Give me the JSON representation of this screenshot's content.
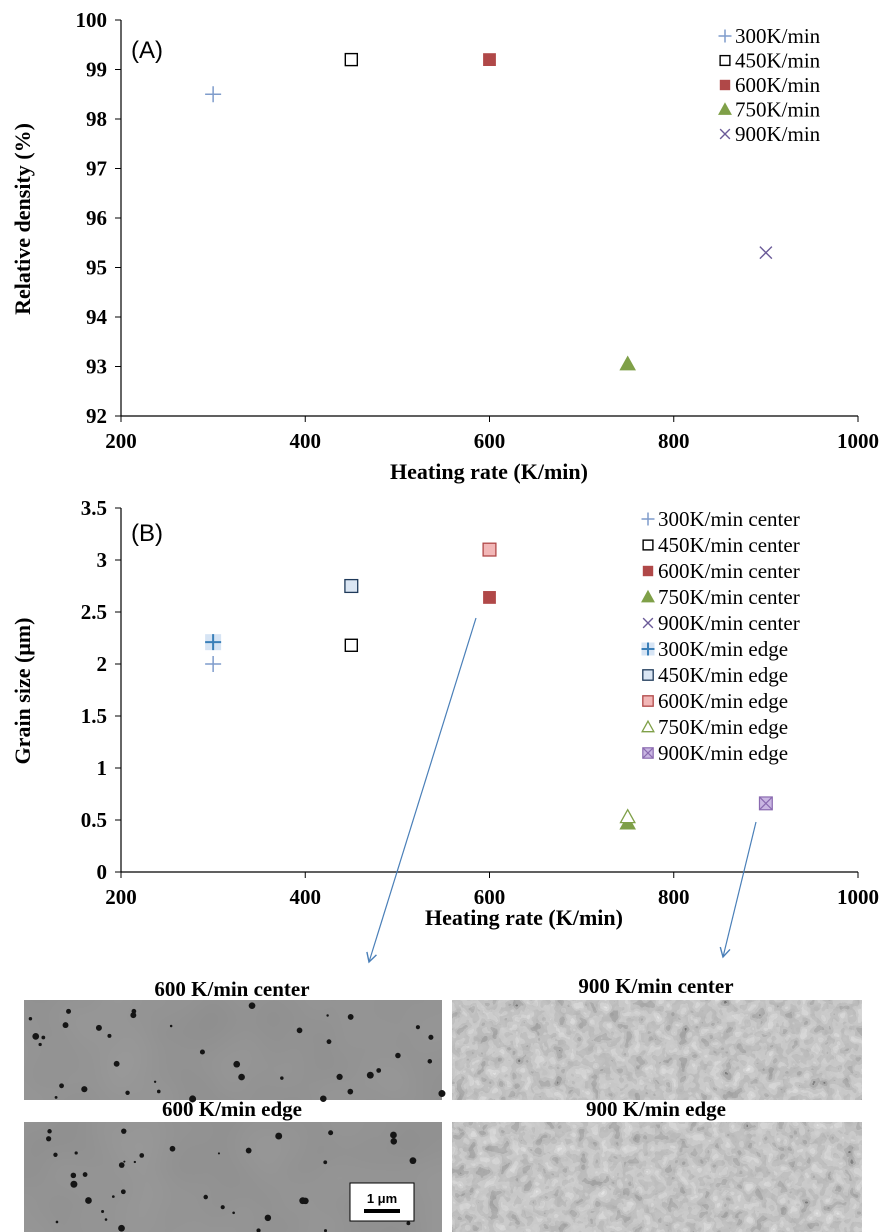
{
  "chart_data": [
    {
      "type": "scatter",
      "panel_label": "(A)",
      "title": "",
      "xlabel": "Heating rate (K/min)",
      "ylabel": "Relative density (%)",
      "xlim": [
        200,
        1000
      ],
      "ylim": [
        92,
        100
      ],
      "xticks": [
        200,
        400,
        600,
        800,
        1000
      ],
      "yticks": [
        92,
        93,
        94,
        95,
        96,
        97,
        98,
        99,
        100
      ],
      "grid": false,
      "legend_position": "top-right",
      "series": [
        {
          "name": "300K/min",
          "marker": "plus",
          "color": "#7f9ccb",
          "points": [
            {
              "x": 300,
              "y": 98.5
            }
          ]
        },
        {
          "name": "450K/min",
          "marker": "square-open",
          "color": "#000000",
          "points": [
            {
              "x": 450,
              "y": 99.2
            }
          ]
        },
        {
          "name": "600K/min",
          "marker": "square-filled",
          "color": "#b04848",
          "points": [
            {
              "x": 600,
              "y": 99.2
            }
          ]
        },
        {
          "name": "750K/min",
          "marker": "triangle-filled",
          "color": "#7fa048",
          "points": [
            {
              "x": 750,
              "y": 93.05
            }
          ]
        },
        {
          "name": "900K/min",
          "marker": "cross",
          "color": "#6a5a98",
          "points": [
            {
              "x": 900,
              "y": 95.3
            }
          ]
        }
      ]
    },
    {
      "type": "scatter",
      "panel_label": "(B)",
      "title": "",
      "xlabel": "Heating rate (K/min)",
      "ylabel": "Grain size (μm)",
      "xlim": [
        200,
        1000
      ],
      "ylim": [
        0,
        3.5
      ],
      "xticks": [
        200,
        400,
        600,
        800,
        1000
      ],
      "yticks": [
        0,
        0.5,
        1,
        1.5,
        2,
        2.5,
        3,
        3.5
      ],
      "grid": false,
      "legend_position": "top-right",
      "series": [
        {
          "name": "300K/min center",
          "marker": "plus",
          "color": "#7f9ccb",
          "points": [
            {
              "x": 300,
              "y": 2.0
            }
          ]
        },
        {
          "name": "450K/min center",
          "marker": "square-open",
          "color": "#000000",
          "points": [
            {
              "x": 450,
              "y": 2.18
            }
          ]
        },
        {
          "name": "600K/min center",
          "marker": "square-filled",
          "color": "#b04848",
          "points": [
            {
              "x": 600,
              "y": 2.64
            }
          ]
        },
        {
          "name": "750K/min center",
          "marker": "triangle-filled",
          "color": "#7fa048",
          "points": [
            {
              "x": 750,
              "y": 0.47
            }
          ]
        },
        {
          "name": "900K/min center",
          "marker": "cross",
          "color": "#6a5a98",
          "points": [
            {
              "x": 900,
              "y": 0.66
            }
          ]
        },
        {
          "name": "300K/min edge",
          "marker": "plus-boxed",
          "color": "#3a7fb8",
          "fill": "#d6e4f4",
          "points": [
            {
              "x": 300,
              "y": 2.21
            }
          ]
        },
        {
          "name": "450K/min edge",
          "marker": "square-light",
          "color": "#1f3a5a",
          "fill": "#dbe6f3",
          "points": [
            {
              "x": 450,
              "y": 2.75
            }
          ]
        },
        {
          "name": "600K/min edge",
          "marker": "square-light",
          "color": "#b04848",
          "fill": "#f2b7b7",
          "points": [
            {
              "x": 600,
              "y": 3.1
            }
          ]
        },
        {
          "name": "750K/min edge",
          "marker": "triangle-open",
          "color": "#7fa048",
          "fill": "#ffffff",
          "points": [
            {
              "x": 750,
              "y": 0.53
            }
          ]
        },
        {
          "name": "900K/min edge",
          "marker": "square-cross",
          "color": "#8a6ab0",
          "fill": "#c9b6e2",
          "points": [
            {
              "x": 900,
              "y": 0.66
            }
          ]
        }
      ]
    }
  ],
  "micrographs": [
    {
      "label": "600 K/min center",
      "texture": "coarse"
    },
    {
      "label": "900 K/min center",
      "texture": "fine"
    },
    {
      "label": "600 K/min edge",
      "texture": "coarse"
    },
    {
      "label": "900 K/min edge",
      "texture": "fine"
    }
  ],
  "scale_bar": {
    "label": "1 μm"
  },
  "colors": {
    "arrow": "#4a7fb8"
  }
}
